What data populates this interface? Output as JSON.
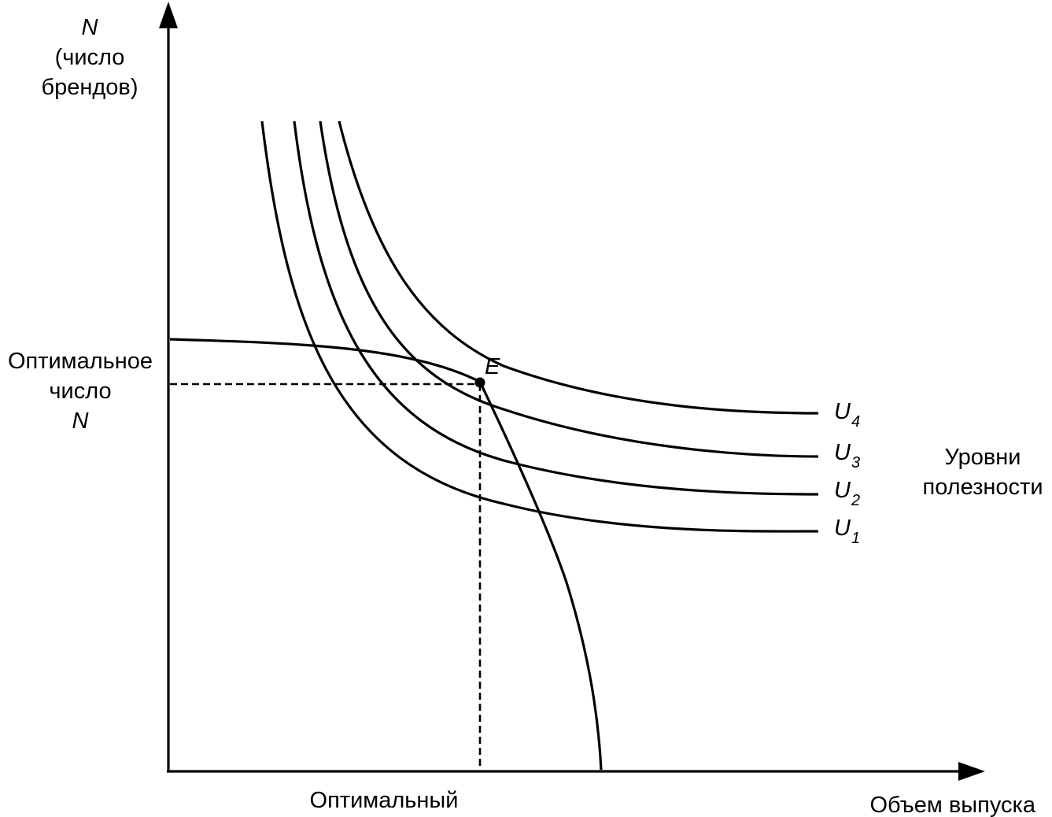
{
  "y_axis": {
    "symbol": "N",
    "line1": "(число",
    "line2": "брендов)"
  },
  "x_axis": {
    "label": "Объем выпуска"
  },
  "optimal_n": {
    "line1": "Оптимальное",
    "line2": "число",
    "line3": "N"
  },
  "optimal_output": {
    "label": "Оптимальный"
  },
  "equilibrium": {
    "label": "E"
  },
  "utility_curves": [
    {
      "letter": "U",
      "sub": "1"
    },
    {
      "letter": "U",
      "sub": "2"
    },
    {
      "letter": "U",
      "sub": "3"
    },
    {
      "letter": "U",
      "sub": "4"
    }
  ],
  "utility_group": {
    "line1": "Уровни",
    "line2": "полезности"
  },
  "colors": {
    "ink": "#000000",
    "background": "#ffffff"
  }
}
